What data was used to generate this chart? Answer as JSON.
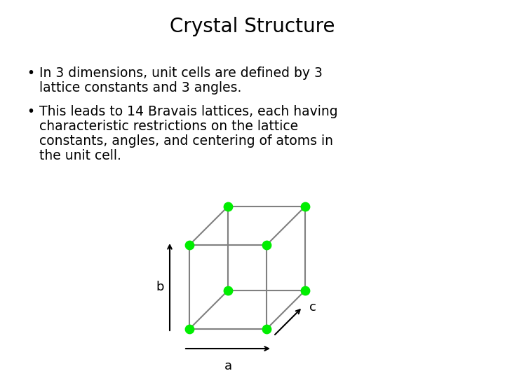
{
  "title": "Crystal Structure",
  "bullet1_line1": "In 3 dimensions, unit cells are defined by 3",
  "bullet1_line2": "lattice constants and 3 angles.",
  "bullet2_line1": "This leads to 14 Bravais lattices, each having",
  "bullet2_line2": "characteristic restrictions on the lattice",
  "bullet2_line3": "constants, angles, and centering of atoms in",
  "bullet2_line4": "the unit cell.",
  "background_color": "#ffffff",
  "title_fontsize": 20,
  "text_fontsize": 13.5,
  "node_color": "#00ee00",
  "edge_color": "#808080",
  "arrow_color": "#000000",
  "label_fontsize": 13
}
